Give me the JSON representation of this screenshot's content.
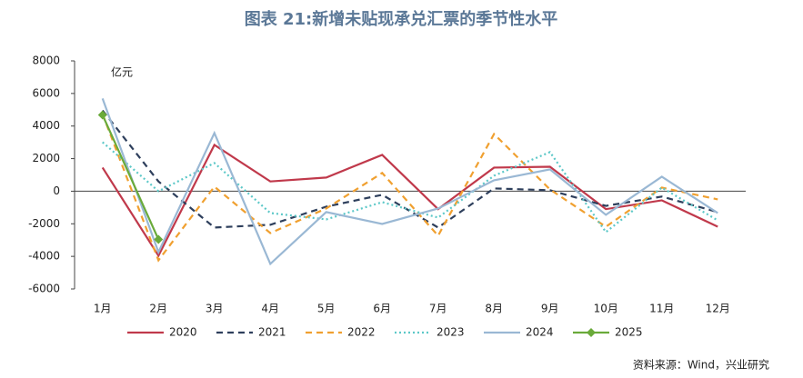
{
  "chart_data": {
    "type": "line",
    "title": "图表 21:新增未贴现承兑汇票的季节性水平",
    "y_unit": "亿元",
    "source": "资料来源：Wind，兴业研究",
    "categories": [
      "1月",
      "2月",
      "3月",
      "4月",
      "5月",
      "6月",
      "7月",
      "8月",
      "9月",
      "10月",
      "11月",
      "12月"
    ],
    "ylim": [
      -6000,
      8000
    ],
    "yticks": [
      -6000,
      -4000,
      -2000,
      0,
      2000,
      4000,
      6000,
      8000
    ],
    "series": [
      {
        "name": "2020",
        "color": "#c0394b",
        "dash": "solid",
        "values": [
          1450,
          -3960,
          2840,
          600,
          840,
          2230,
          -1100,
          1450,
          1500,
          -1100,
          -560,
          -2180
        ]
      },
      {
        "name": "2021",
        "color": "#2e3f5c",
        "dash": "dashed",
        "values": [
          4960,
          600,
          -2230,
          -2060,
          -950,
          -220,
          -2230,
          170,
          60,
          -900,
          -330,
          -1280
        ]
      },
      {
        "name": "2022",
        "color": "#f0a030",
        "dash": "dashed",
        "values": [
          4740,
          -4240,
          280,
          -2570,
          -1060,
          1120,
          -2730,
          3510,
          110,
          -2180,
          220,
          -500
        ]
      },
      {
        "name": "2023",
        "color": "#5cc8c8",
        "dash": "dotted",
        "values": [
          3010,
          0,
          1730,
          -1340,
          -1730,
          -670,
          -1620,
          950,
          2400,
          -2510,
          220,
          -1790
        ]
      },
      {
        "name": "2024",
        "color": "#9ab8d4",
        "dash": "solid",
        "values": [
          5690,
          -3740,
          3570,
          -4460,
          -1280,
          -2010,
          -1060,
          670,
          1340,
          -1450,
          890,
          -1340
        ]
      },
      {
        "name": "2025",
        "color": "#6aaa3a",
        "dash": "solid",
        "marker": "diamond",
        "values": [
          4680,
          -2960,
          null,
          null,
          null,
          null,
          null,
          null,
          null,
          null,
          null,
          null
        ]
      }
    ]
  }
}
